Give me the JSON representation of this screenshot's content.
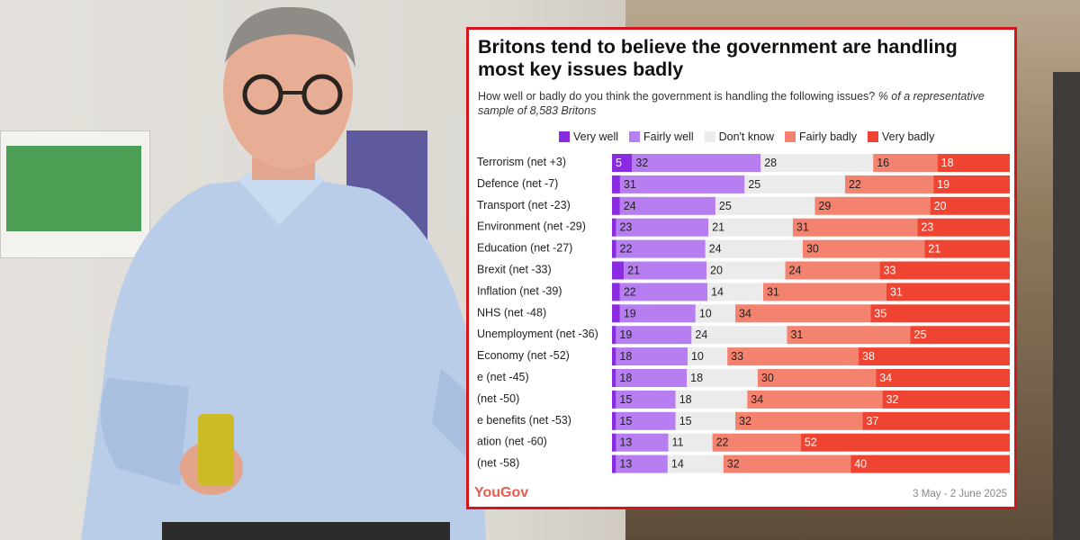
{
  "card": {
    "title": "Britons tend to believe the government are handling most key issues badly",
    "subtitle_main": "How well or badly do you think the government is handling the following issues? ",
    "subtitle_italic": "% of a representative sample of 8,583 Britons",
    "date_range": "3 May - 2 June 2025",
    "brand": "YouGov"
  },
  "colors": {
    "very_well": "#8a2be2",
    "fairly_well": "#b67ef0",
    "dont_know": "#ebebeb",
    "fairly_badly": "#f3826f",
    "very_badly": "#f04432",
    "frame": "#d6141b"
  },
  "chart_data": {
    "type": "bar",
    "orientation": "horizontal",
    "stacked": true,
    "xlim": [
      0,
      100
    ],
    "categories": [
      "Terrorism (net +3)",
      "Defence (net -7)",
      "Transport (net -23)",
      "Environment (net -29)",
      "Education (net -27)",
      "Brexit (net -33)",
      "Inflation (net -39)",
      "NHS (net -48)",
      "Unemployment (net -36)",
      "Economy (net -52)",
      "e (net -45)",
      "(net -50)",
      "e benefits (net -53)",
      "ation (net -60)",
      "(net -58)"
    ],
    "series": [
      {
        "name": "Very well",
        "values": [
          5,
          2,
          2,
          1,
          1,
          3,
          2,
          2,
          1,
          1,
          1,
          1,
          1,
          1,
          1
        ],
        "labels": [
          "5",
          "",
          "",
          "",
          "",
          "",
          "",
          "",
          "",
          "",
          "",
          "",
          "",
          "",
          ""
        ]
      },
      {
        "name": "Fairly well",
        "values": [
          32,
          31,
          24,
          23,
          22,
          21,
          22,
          19,
          19,
          18,
          18,
          15,
          15,
          13,
          13
        ],
        "labels": [
          "32",
          "31",
          "24",
          "23",
          "22",
          "21",
          "22",
          "19",
          "19",
          "18",
          "18",
          "15",
          "15",
          "13",
          "13"
        ]
      },
      {
        "name": "Don't know",
        "values": [
          28,
          25,
          25,
          21,
          24,
          20,
          14,
          10,
          24,
          10,
          18,
          18,
          15,
          11,
          14
        ],
        "labels": [
          "28",
          "25",
          "25",
          "21",
          "24",
          "20",
          "14",
          "10",
          "24",
          "10",
          "18",
          "18",
          "15",
          "11",
          "14"
        ]
      },
      {
        "name": "Fairly badly",
        "values": [
          16,
          22,
          29,
          31,
          30,
          24,
          31,
          34,
          31,
          33,
          30,
          34,
          32,
          22,
          32
        ],
        "labels": [
          "16",
          "22",
          "29",
          "31",
          "30",
          "24",
          "31",
          "34",
          "31",
          "33",
          "30",
          "34",
          "32",
          "22",
          "32"
        ]
      },
      {
        "name": "Very badly",
        "values": [
          18,
          19,
          20,
          23,
          21,
          33,
          31,
          35,
          25,
          38,
          34,
          32,
          37,
          52,
          40
        ],
        "labels": [
          "18",
          "19",
          "20",
          "23",
          "21",
          "33",
          "31",
          "35",
          "25",
          "38",
          "34",
          "32",
          "37",
          "52",
          "40"
        ]
      }
    ]
  }
}
